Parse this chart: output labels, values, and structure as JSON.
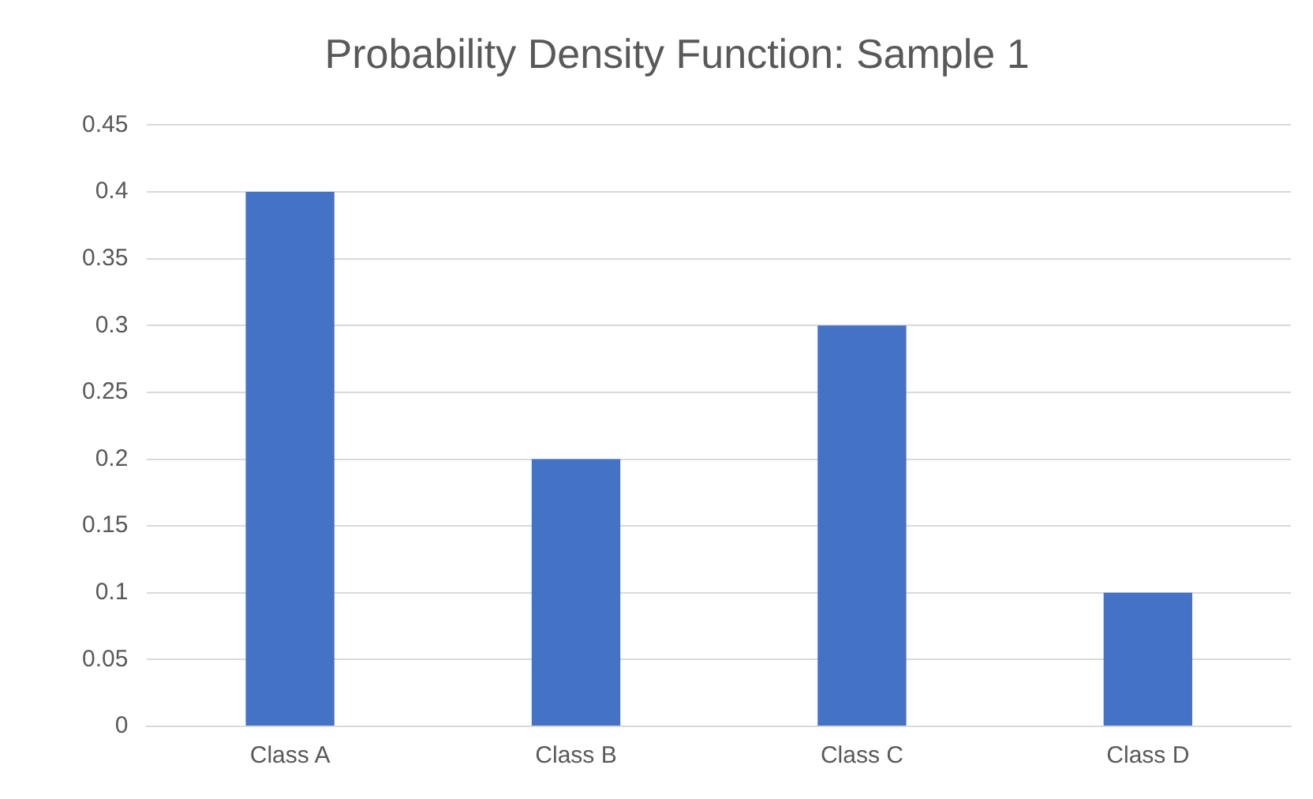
{
  "chart_data": {
    "type": "bar",
    "title": "Probability Density Function: Sample 1",
    "categories": [
      "Class A",
      "Class B",
      "Class C",
      "Class D"
    ],
    "values": [
      0.4,
      0.2,
      0.3,
      0.1
    ],
    "color": "#4472c4",
    "ylim": [
      0,
      0.45
    ],
    "yticks": [
      0,
      0.05,
      0.1,
      0.15,
      0.2,
      0.25,
      0.3,
      0.35,
      0.4,
      0.45
    ],
    "grid": "y",
    "legend": false
  }
}
